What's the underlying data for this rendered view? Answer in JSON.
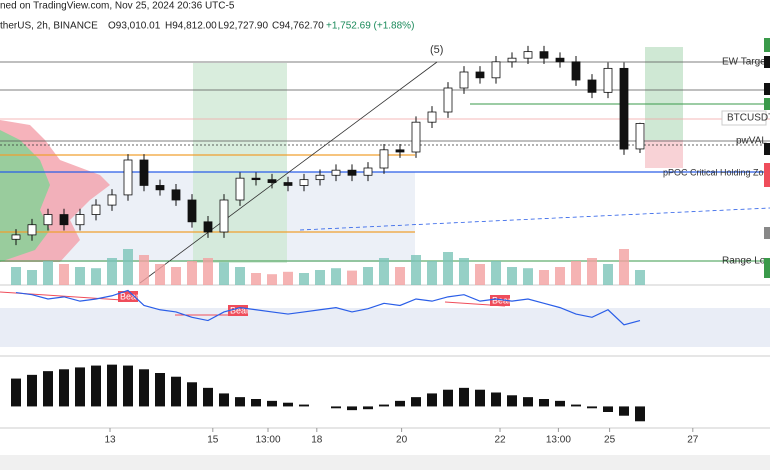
{
  "header": {
    "source": "ned on TradingView.com, Nov 25, 2024 20:36 UTC-5",
    "symbol": "therUS, 2h, BINANCE",
    "o": "O93,010.01",
    "h": "H94,812.00",
    "l": "L92,727.90",
    "c": "C94,762.70",
    "change": "+1,752.69 (+1.88%)"
  },
  "chart_data": {
    "type": "candlestick",
    "annotations": {
      "wave": "(5)",
      "ew_target": "EW Target",
      "symbol_tag": "BTCUSDT",
      "pwval": "pwVAL",
      "ppoc": "pPOC Critical Holding Zone",
      "range_low": "Range Low",
      "bear": [
        "Bear",
        "Bear",
        "Bear"
      ]
    },
    "xlim": [
      -1,
      47.125
    ],
    "xticks": [
      {
        "value": 5.875,
        "label": "13"
      },
      {
        "value": 12.3,
        "label": "15"
      },
      {
        "value": 15.75,
        "label": "13:00"
      },
      {
        "value": 18.8,
        "label": "18"
      },
      {
        "value": 24.1,
        "label": "20"
      },
      {
        "value": 30.25,
        "label": "22"
      },
      {
        "value": 33.9,
        "label": "13:00"
      },
      {
        "value": 37.1,
        "label": "25"
      },
      {
        "value": 42.3,
        "label": "27"
      }
    ],
    "ylim": [
      84000,
      100500
    ],
    "open": [
      86800,
      87100,
      87800,
      88500,
      87800,
      88500,
      89150,
      89850,
      92250,
      90500,
      90200,
      89500,
      88000,
      87300,
      89500,
      91000,
      90900,
      90700,
      90500,
      90900,
      91200,
      91550,
      91200,
      91700,
      92950,
      92800,
      94850,
      95550,
      97200,
      98300,
      97900,
      99000,
      99250,
      99700,
      99250,
      99000,
      97750,
      96900,
      98550,
      93010.01
    ],
    "high": [
      87500,
      88200,
      88900,
      88900,
      88900,
      89550,
      90250,
      92650,
      92650,
      90900,
      90600,
      89900,
      88400,
      89900,
      91400,
      91400,
      91300,
      91100,
      91300,
      91600,
      91950,
      91950,
      92100,
      93350,
      93350,
      95250,
      95950,
      97600,
      98700,
      98700,
      99400,
      99650,
      100100,
      100100,
      99650,
      99400,
      98150,
      98950,
      98950,
      94812
    ],
    "low": [
      86400,
      86700,
      87400,
      87400,
      87400,
      88100,
      88750,
      89450,
      90100,
      89800,
      89100,
      87600,
      86900,
      86900,
      89100,
      90500,
      90300,
      90100,
      90100,
      90500,
      90800,
      90800,
      90800,
      91300,
      92400,
      92400,
      94450,
      95150,
      96800,
      97500,
      97500,
      98600,
      98850,
      98850,
      98600,
      97350,
      96500,
      96500,
      92600,
      92727.9
    ],
    "close": [
      87100,
      87800,
      88500,
      87800,
      88500,
      89150,
      89850,
      92250,
      90500,
      90200,
      89500,
      88000,
      87300,
      89500,
      91000,
      90900,
      90700,
      90500,
      90900,
      91200,
      91550,
      91200,
      91700,
      92950,
      92800,
      94850,
      95550,
      97200,
      98300,
      97900,
      99000,
      99250,
      99700,
      99250,
      99000,
      97750,
      96900,
      98550,
      93000,
      94762.7
    ],
    "volume_lim": [
      0,
      100
    ],
    "volume": [
      30,
      25,
      40,
      35,
      30,
      28,
      45,
      60,
      50,
      35,
      30,
      40,
      45,
      38,
      30,
      20,
      18,
      22,
      20,
      25,
      28,
      24,
      30,
      45,
      30,
      50,
      40,
      55,
      45,
      35,
      40,
      30,
      28,
      25,
      30,
      40,
      45,
      35,
      60,
      25
    ],
    "rsi_lim": [
      20,
      85
    ],
    "rsi": [
      78,
      76,
      72,
      74,
      70,
      72,
      75,
      80,
      66,
      62,
      60,
      55,
      52,
      60,
      64,
      62,
      60,
      58,
      60,
      62,
      64,
      60,
      63,
      68,
      66,
      72,
      70,
      74,
      76,
      70,
      72,
      70,
      72,
      68,
      64,
      58,
      55,
      62,
      48,
      52
    ],
    "hist_lim": [
      -20,
      50
    ],
    "histogram": [
      30,
      34,
      38,
      40,
      42,
      44,
      45,
      44,
      40,
      36,
      32,
      26,
      20,
      14,
      10,
      8,
      6,
      4,
      2,
      0,
      -2,
      -4,
      -3,
      2,
      6,
      10,
      14,
      18,
      20,
      18,
      15,
      12,
      10,
      8,
      6,
      2,
      -2,
      -6,
      -10,
      -16
    ]
  }
}
